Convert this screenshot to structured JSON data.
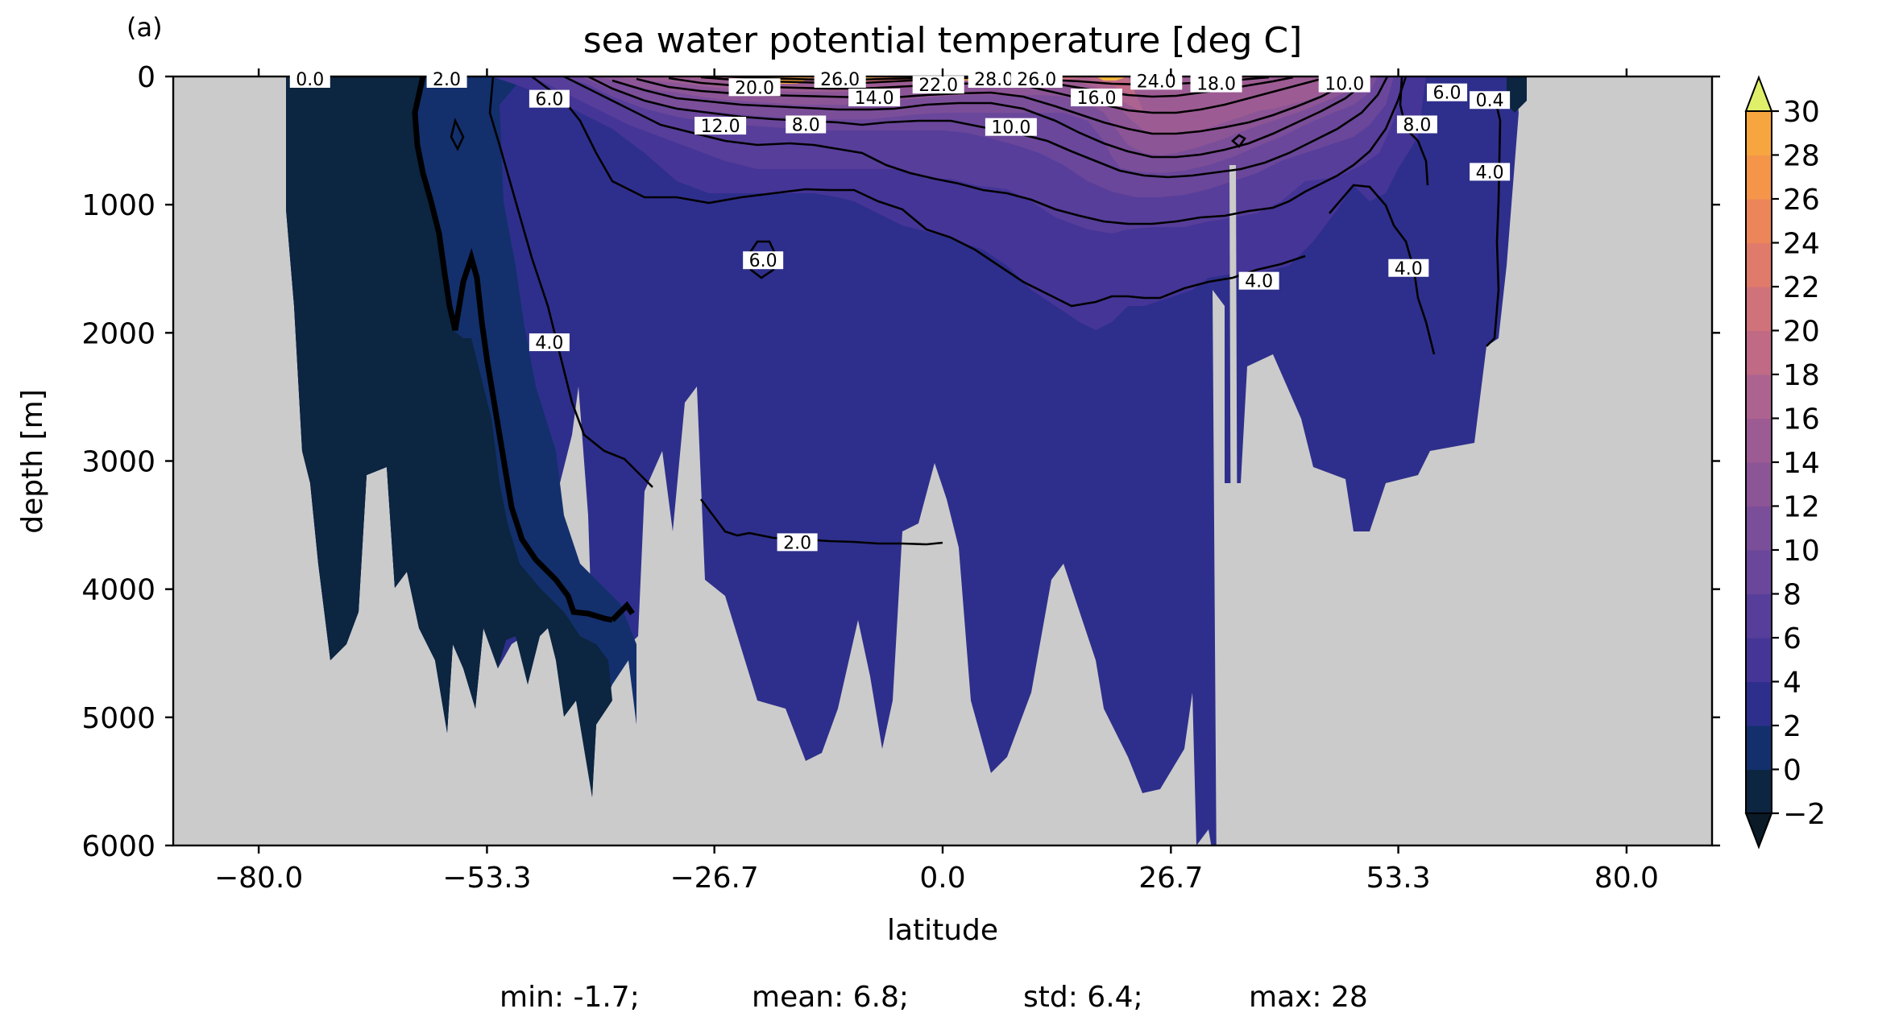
{
  "panel_label": "(a)",
  "stats": {
    "min": "min: -1.7;",
    "mean": "mean: 6.8;",
    "std": "std: 6.4;",
    "max": "max: 28"
  },
  "colors": {
    "background": "#cbcbcb",
    "levels": [
      "#0c2540",
      "#13306d",
      "#2e2f8c",
      "#453597",
      "#573e9a",
      "#6a479b",
      "#7b4e99",
      "#8c5596",
      "#9c5c93",
      "#ad6390",
      "#c06a86",
      "#d0727a",
      "#e07a6a",
      "#ec865a",
      "#f4954a",
      "#f7a63f",
      "#f4ba3c",
      "#efcd45",
      "#e6e056",
      "#e0ef6a"
    ]
  },
  "chart_data": {
    "type": "contourf",
    "title": "sea water potential temperature [deg C]",
    "xlabel": "latitude",
    "ylabel": "depth [m]",
    "xlim": [
      -90,
      90
    ],
    "ylim": [
      6000,
      0
    ],
    "x_ticks": [
      -80.0,
      -53.3,
      -26.7,
      0.0,
      26.7,
      53.3,
      80.0
    ],
    "x_tick_labels": [
      "−80.0",
      "−53.3",
      "−26.7",
      "0.0",
      "26.7",
      "53.3",
      "80.0"
    ],
    "y_ticks": [
      0,
      1000,
      2000,
      3000,
      4000,
      5000,
      6000
    ],
    "y_tick_labels": [
      "0",
      "1000",
      "2000",
      "3000",
      "4000",
      "5000",
      "6000"
    ],
    "colorbar": {
      "levels": [
        -2,
        0,
        2,
        4,
        6,
        8,
        10,
        12,
        14,
        16,
        18,
        20,
        22,
        24,
        26,
        28,
        30
      ],
      "tick_labels": [
        "−2",
        "0",
        "2",
        "4",
        "6",
        "8",
        "10",
        "12",
        "14",
        "16",
        "18",
        "20",
        "22",
        "24",
        "26",
        "28",
        "30"
      ],
      "extend": "both"
    },
    "contour_labels": [
      {
        "text": "0.0",
        "lat": -74,
        "depth": 0
      },
      {
        "text": "2.0",
        "lat": -58,
        "depth": 0
      },
      {
        "text": "6.0",
        "lat": -46,
        "depth": 180
      },
      {
        "text": "20.0",
        "lat": -22,
        "depth": 90
      },
      {
        "text": "26.0",
        "lat": -12,
        "depth": 0
      },
      {
        "text": "12.0",
        "lat": -26,
        "depth": 390
      },
      {
        "text": "8.0",
        "lat": -16,
        "depth": 380
      },
      {
        "text": "14.0",
        "lat": -8,
        "depth": 170
      },
      {
        "text": "22.0",
        "lat": -0.5,
        "depth": 70
      },
      {
        "text": "28.0",
        "lat": 6,
        "depth": 0
      },
      {
        "text": "26.0",
        "lat": 11,
        "depth": 0
      },
      {
        "text": "10.0",
        "lat": 8,
        "depth": 400
      },
      {
        "text": "16.0",
        "lat": 18,
        "depth": 170
      },
      {
        "text": "24.0",
        "lat": 25,
        "depth": 40
      },
      {
        "text": "18.0",
        "lat": 32,
        "depth": 60
      },
      {
        "text": "10.0",
        "lat": 47,
        "depth": 60
      },
      {
        "text": "6.0",
        "lat": 59,
        "depth": 130
      },
      {
        "text": "8.0",
        "lat": 55.5,
        "depth": 380
      },
      {
        "text": "0.4",
        "lat": 64,
        "depth": 190
      },
      {
        "text": "4.0",
        "lat": 64,
        "depth": 750
      },
      {
        "text": "4.0",
        "lat": 54.5,
        "depth": 1500
      },
      {
        "text": "4.0",
        "lat": 37,
        "depth": 1600
      },
      {
        "text": "6.0",
        "lat": -21,
        "depth": 1440
      },
      {
        "text": "4.0",
        "lat": -46,
        "depth": 2080
      },
      {
        "text": "2.0",
        "lat": -17,
        "depth": 3640
      }
    ]
  }
}
